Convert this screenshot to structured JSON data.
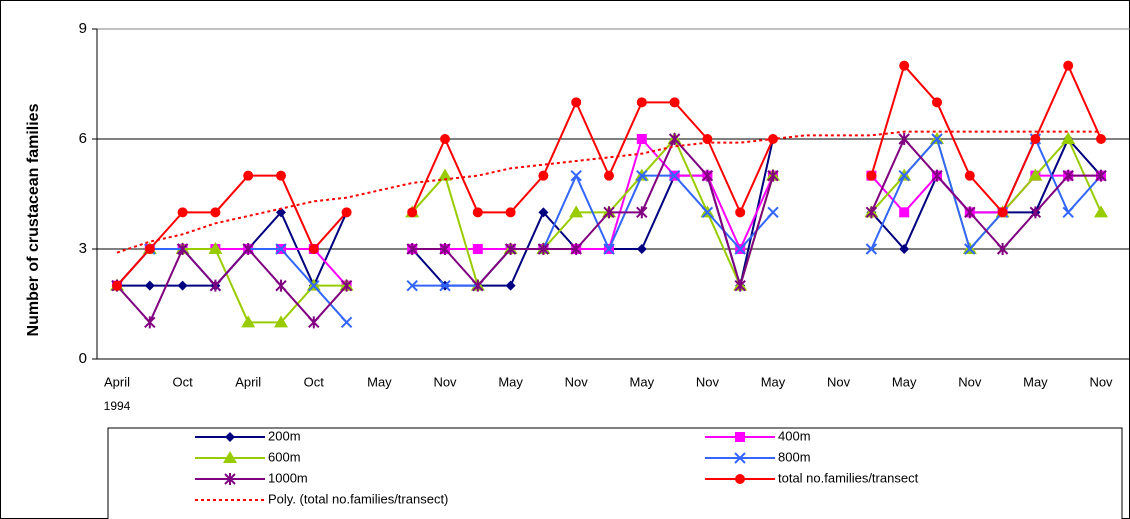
{
  "chart_data": {
    "type": "line",
    "y_label": "Number of crustacean families",
    "categories": [
      "April",
      null,
      "Oct",
      null,
      "April",
      null,
      "Oct",
      null,
      "May",
      null,
      "Nov",
      null,
      "May",
      null,
      "Nov",
      null,
      "May",
      null,
      "Nov",
      null,
      "May",
      null,
      "Nov",
      null,
      "May",
      null,
      "Nov",
      null,
      "May",
      null,
      "Nov"
    ],
    "x_sublabel": "1994",
    "ylim": [
      0,
      9
    ],
    "yticks": [
      0,
      3,
      6,
      9
    ],
    "grid": true,
    "legend": "bottom",
    "series": [
      {
        "name": "200m",
        "color": "#000080",
        "marker": "diamond",
        "values": [
          2,
          2,
          2,
          2,
          3,
          4,
          2,
          4,
          null,
          3,
          2,
          2,
          2,
          4,
          3,
          3,
          3,
          5,
          5,
          2,
          6,
          null,
          null,
          4,
          3,
          5,
          4,
          4,
          4,
          6,
          5
        ]
      },
      {
        "name": "400m",
        "color": "#ff00ff",
        "marker": "square",
        "values": [
          2,
          3,
          3,
          3,
          3,
          3,
          3,
          2,
          null,
          3,
          3,
          3,
          3,
          3,
          3,
          3,
          6,
          5,
          5,
          3,
          5,
          null,
          null,
          5,
          4,
          5,
          4,
          4,
          5,
          5,
          5
        ]
      },
      {
        "name": "600m",
        "color": "#99cc00",
        "marker": "triangle",
        "values": [
          2,
          3,
          3,
          3,
          1,
          1,
          2,
          2,
          null,
          4,
          5,
          2,
          3,
          3,
          4,
          4,
          5,
          6,
          4,
          2,
          5,
          null,
          null,
          4,
          5,
          6,
          3,
          4,
          5,
          6,
          4
        ]
      },
      {
        "name": "800m",
        "color": "#3366ff",
        "marker": "x",
        "values": [
          2,
          3,
          3,
          2,
          3,
          3,
          2,
          1,
          null,
          2,
          2,
          2,
          3,
          3,
          5,
          3,
          5,
          5,
          4,
          3,
          4,
          null,
          null,
          3,
          5,
          6,
          3,
          4,
          6,
          4,
          5
        ]
      },
      {
        "name": "1000m",
        "color": "#800080",
        "marker": "star",
        "values": [
          2,
          1,
          3,
          2,
          3,
          2,
          1,
          2,
          null,
          3,
          3,
          2,
          3,
          3,
          3,
          4,
          4,
          6,
          5,
          2,
          5,
          null,
          null,
          4,
          6,
          5,
          4,
          3,
          4,
          5,
          5
        ]
      },
      {
        "name": "total no.families/transect",
        "color": "#ff0000",
        "marker": "circle",
        "values": [
          2,
          3,
          4,
          4,
          5,
          5,
          3,
          4,
          null,
          4,
          6,
          4,
          4,
          5,
          7,
          5,
          7,
          7,
          6,
          4,
          6,
          null,
          null,
          5,
          8,
          7,
          5,
          4,
          6,
          8,
          6
        ]
      },
      {
        "name": "Poly. (total no.families/transect)",
        "color": "#ff0000",
        "marker": "none",
        "dash": "dotted",
        "values": [
          2.9,
          3.2,
          3.4,
          3.7,
          3.9,
          4.1,
          4.3,
          4.4,
          4.6,
          4.8,
          4.9,
          5.0,
          5.2,
          5.3,
          5.4,
          5.5,
          5.6,
          5.8,
          5.9,
          5.9,
          6.0,
          6.1,
          6.1,
          6.1,
          6.2,
          6.2,
          6.2,
          6.2,
          6.2,
          6.2,
          6.2
        ]
      }
    ]
  }
}
